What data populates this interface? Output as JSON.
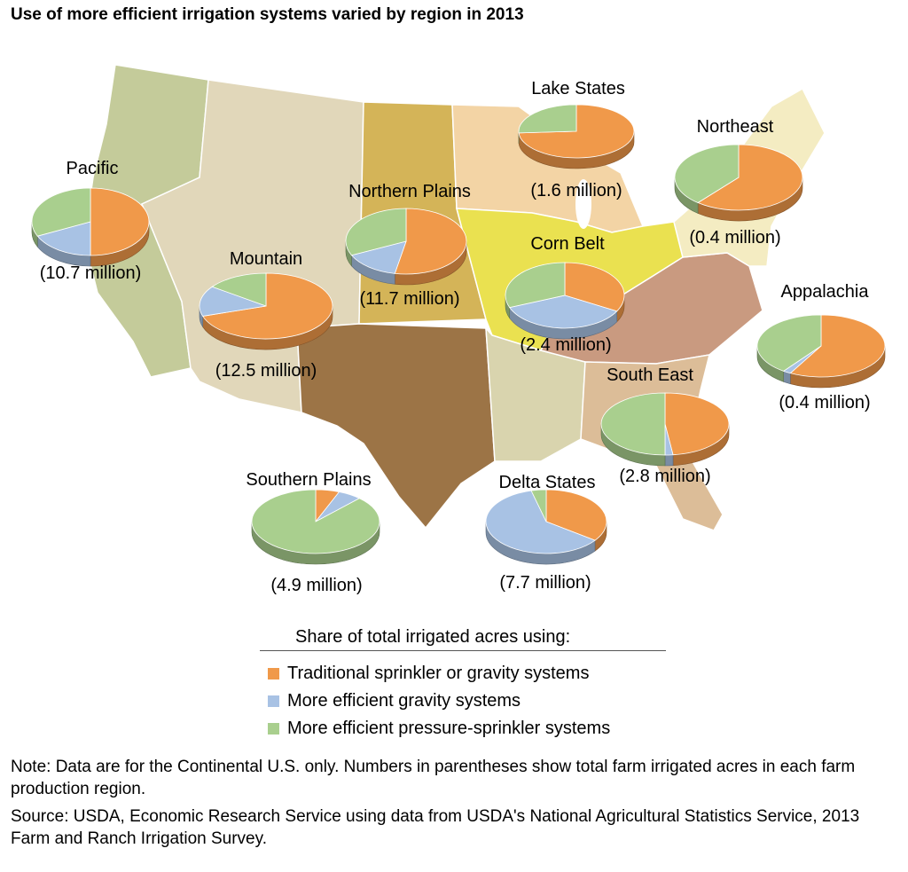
{
  "title": "Use of more efficient irrigation systems varied by region in 2013",
  "colors": {
    "traditional": "#f0994a",
    "gravity": "#a8c2e4",
    "pressure": "#a9cf8e"
  },
  "map_regions": [
    {
      "name": "Pacific",
      "color": "#c4cb9a"
    },
    {
      "name": "Mountain",
      "color": "#e1d7ba"
    },
    {
      "name": "Northern Plains",
      "color": "#d4b458"
    },
    {
      "name": "Southern Plains",
      "color": "#9c7446"
    },
    {
      "name": "Lake States",
      "color": "#f3d4a5"
    },
    {
      "name": "Corn Belt",
      "color": "#eae150"
    },
    {
      "name": "Delta States",
      "color": "#d9d4ae"
    },
    {
      "name": "Appalachia",
      "color": "#c99a80"
    },
    {
      "name": "South East",
      "color": "#dcbd98"
    },
    {
      "name": "Northeast",
      "color": "#f4ecc2"
    }
  ],
  "chart_data": {
    "type": "pie",
    "title": "Use of more efficient irrigation systems varied by region in 2013",
    "series_names": [
      "Traditional sprinkler or gravity systems",
      "More efficient gravity systems",
      "More efficient pressure-sprinkler systems"
    ],
    "regions": [
      {
        "name": "Pacific",
        "total": "(10.7 million)",
        "values": [
          50,
          18,
          32
        ]
      },
      {
        "name": "Mountain",
        "total": "(12.5 million)",
        "values": [
          70,
          15,
          15
        ]
      },
      {
        "name": "Northern Plains",
        "total": "(11.7 million)",
        "values": [
          53,
          15,
          32
        ]
      },
      {
        "name": "Lake States",
        "total": "(1.6 million)",
        "values": [
          74,
          0,
          26
        ]
      },
      {
        "name": "Corn Belt",
        "total": "(2.4 million)",
        "values": [
          33,
          36,
          31
        ]
      },
      {
        "name": "Northeast",
        "total": "(0.4 million)",
        "values": [
          61,
          0,
          39
        ]
      },
      {
        "name": "Appalachia",
        "total": "(0.4 million)",
        "values": [
          58,
          2,
          40
        ]
      },
      {
        "name": "South East",
        "total": "(2.8 million)",
        "values": [
          48,
          2,
          50
        ]
      },
      {
        "name": "Southern Plains",
        "total": "(4.9 million)",
        "values": [
          6,
          6,
          88
        ]
      },
      {
        "name": "Delta States",
        "total": "(7.7 million)",
        "values": [
          35,
          61,
          4
        ]
      }
    ]
  },
  "legend": {
    "heading": "Share of total irrigated acres using:",
    "items": [
      "Traditional sprinkler or gravity systems",
      "More efficient gravity systems",
      "More efficient pressure-sprinkler systems"
    ]
  },
  "note": "Note: Data are for the Continental U.S. only. Numbers in parentheses show total farm irrigated acres in each farm production region.",
  "source": "Source: USDA, Economic Research Service using data from USDA's National Agricultural Statistics Service, 2013 Farm and Ranch Irrigation Survey."
}
